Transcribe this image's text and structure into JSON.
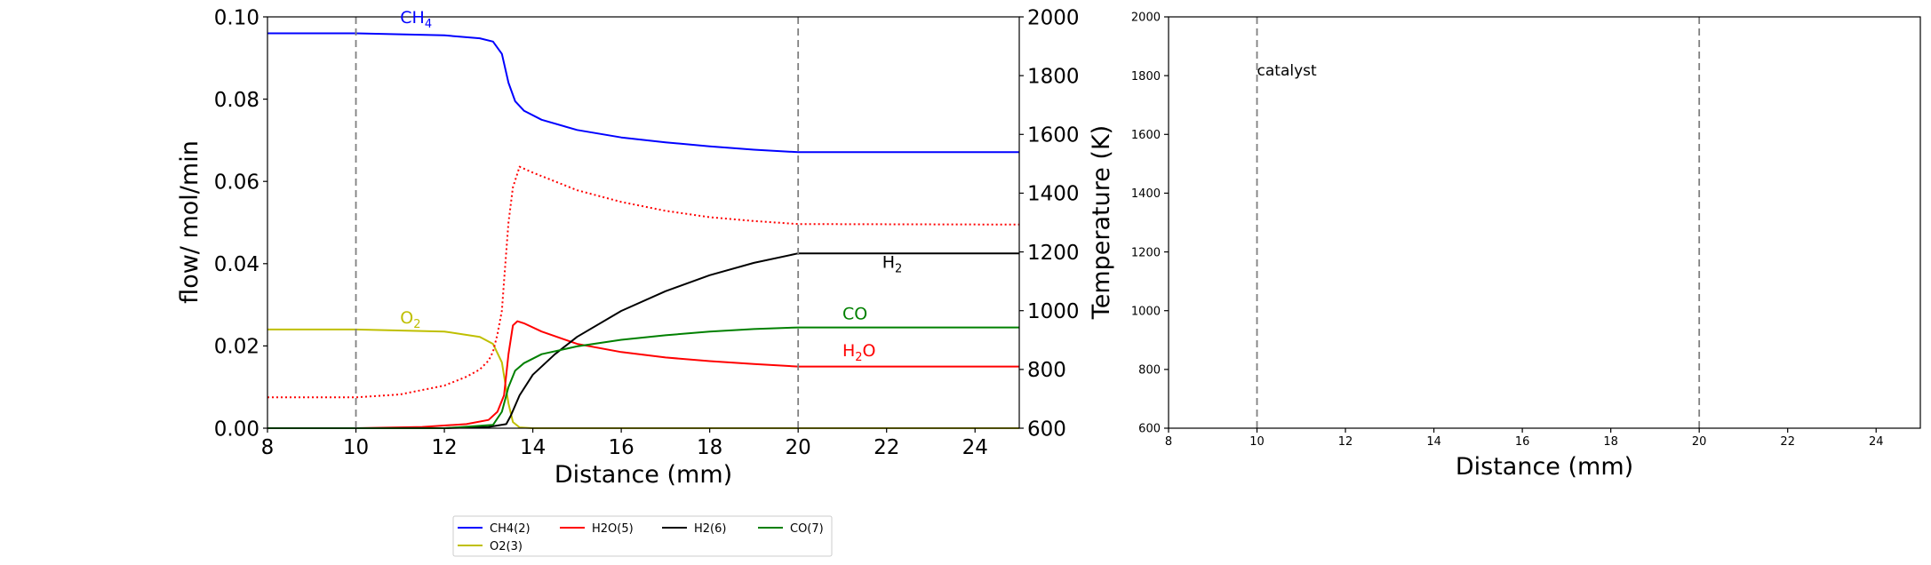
{
  "chart_data": [
    {
      "type": "line",
      "title": "",
      "xlabel": "Distance (mm)",
      "ylabel": "flow/ mol/min",
      "y2label": "Temperature (K)",
      "xlim": [
        8,
        25
      ],
      "ylim": [
        0,
        0.1
      ],
      "y2lim": [
        600,
        2000
      ],
      "xticks": [
        8,
        10,
        12,
        14,
        16,
        18,
        20,
        22,
        24
      ],
      "xtick_labels": [
        "8",
        "10",
        "12",
        "14",
        "16",
        "18",
        "20",
        "22",
        "24"
      ],
      "yticks": [
        0,
        0.02,
        0.04,
        0.06,
        0.08,
        0.1
      ],
      "ytick_labels": [
        "0.00",
        "0.02",
        "0.04",
        "0.06",
        "0.08",
        "0.10"
      ],
      "y2ticks": [
        600,
        800,
        1000,
        1200,
        1400,
        1600,
        1800,
        2000
      ],
      "y2tick_labels": [
        "600",
        "800",
        "1000",
        "1200",
        "1400",
        "1600",
        "1800",
        "2000"
      ],
      "vlines": [
        10,
        20
      ],
      "grid": false,
      "legend_position": "bottom, below plots",
      "legend_entries": [
        {
          "label": "CH4(2)",
          "color": "#0000ff"
        },
        {
          "label": "H2O(5)",
          "color": "#ff0000"
        },
        {
          "label": "H2(6)",
          "color": "#000000"
        },
        {
          "label": "CO(7)",
          "color": "#008000"
        },
        {
          "label": "O2(3)",
          "color": "#bfbf00"
        }
      ],
      "annotations": [
        {
          "base": "CH",
          "sub": "4",
          "color": "#0000ff",
          "x": 11.0,
          "y": 0.0985
        },
        {
          "base": "O",
          "sub": "2",
          "color": "#bfbf00",
          "x": 11.0,
          "y": 0.0255
        },
        {
          "base": "H",
          "sub": "2",
          "color": "#000000",
          "x": 21.9,
          "y": 0.039
        },
        {
          "base": "CO",
          "sub": "",
          "color": "#008000",
          "x": 21.0,
          "y": 0.0265
        },
        {
          "base": "H",
          "sub": "2",
          "tail": "O",
          "color": "#ff0000",
          "x": 21.0,
          "y": 0.0175
        }
      ],
      "series": [
        {
          "name": "CH4(2)",
          "axis": "left",
          "style": "solid",
          "color": "#0000ff",
          "x": [
            8,
            10,
            12,
            12.8,
            13.1,
            13.3,
            13.45,
            13.6,
            13.8,
            14.2,
            15,
            16,
            17,
            18,
            19,
            20,
            25
          ],
          "y": [
            0.096,
            0.096,
            0.0955,
            0.0948,
            0.094,
            0.091,
            0.084,
            0.0795,
            0.0772,
            0.075,
            0.0725,
            0.0707,
            0.0695,
            0.0685,
            0.0677,
            0.0671,
            0.0671
          ]
        },
        {
          "name": "O2(3)",
          "axis": "left",
          "style": "solid",
          "color": "#bfbf00",
          "x": [
            8,
            10,
            12,
            12.8,
            13.1,
            13.3,
            13.45,
            13.55,
            13.7,
            14,
            25
          ],
          "y": [
            0.024,
            0.024,
            0.0235,
            0.0222,
            0.0205,
            0.016,
            0.006,
            0.0015,
            0.0002,
            0,
            0
          ]
        },
        {
          "name": "H2O(5)",
          "axis": "left",
          "style": "solid",
          "color": "#ff0000",
          "x": [
            8,
            10,
            11.5,
            12.5,
            13.0,
            13.2,
            13.35,
            13.45,
            13.55,
            13.65,
            13.8,
            14.2,
            15,
            16,
            17,
            18,
            19,
            20,
            25
          ],
          "y": [
            0,
            0,
            0.0003,
            0.001,
            0.002,
            0.004,
            0.008,
            0.018,
            0.025,
            0.026,
            0.0255,
            0.0235,
            0.0205,
            0.0185,
            0.0172,
            0.0163,
            0.0156,
            0.015,
            0.015
          ]
        },
        {
          "name": "H2(6)",
          "axis": "left",
          "style": "solid",
          "color": "#000000",
          "x": [
            8,
            12,
            13.0,
            13.4,
            13.5,
            13.7,
            14,
            14.5,
            15,
            16,
            17,
            18,
            19,
            20,
            25
          ],
          "y": [
            0,
            0,
            0.0003,
            0.001,
            0.003,
            0.008,
            0.013,
            0.018,
            0.0222,
            0.0285,
            0.0333,
            0.0372,
            0.0402,
            0.0425,
            0.0425
          ]
        },
        {
          "name": "CO(7)",
          "axis": "left",
          "style": "solid",
          "color": "#008000",
          "x": [
            8,
            12,
            13.1,
            13.3,
            13.45,
            13.6,
            13.8,
            14.2,
            15,
            16,
            17,
            18,
            19,
            20,
            25
          ],
          "y": [
            0,
            0,
            0.0008,
            0.004,
            0.01,
            0.014,
            0.0158,
            0.018,
            0.0199,
            0.0215,
            0.0226,
            0.0235,
            0.0241,
            0.0245,
            0.0245
          ]
        },
        {
          "name": "Temperature",
          "axis": "right",
          "style": "dotted",
          "color": "#ff0000",
          "x": [
            8,
            10,
            11,
            12,
            12.5,
            12.8,
            13.0,
            13.1,
            13.2,
            13.3,
            13.35,
            13.45,
            13.55,
            13.7,
            14,
            15,
            16,
            17,
            18,
            19,
            20,
            25
          ],
          "y": [
            705,
            705,
            715,
            745,
            775,
            800,
            830,
            860,
            920,
            1000,
            1100,
            1300,
            1420,
            1490,
            1470,
            1410,
            1370,
            1340,
            1318,
            1305,
            1295,
            1293
          ]
        }
      ]
    },
    {
      "type": "line",
      "title": "",
      "xlabel": "Distance (mm)",
      "ylabel": "",
      "xlim": [
        8,
        25
      ],
      "ylim": [
        600,
        2000
      ],
      "xticks": [
        8,
        10,
        12,
        14,
        16,
        18,
        20,
        22,
        24
      ],
      "xtick_labels": [
        "8",
        "10",
        "12",
        "14",
        "16",
        "18",
        "20",
        "22",
        "24"
      ],
      "yticks": [
        600,
        800,
        1000,
        1200,
        1400,
        1600,
        1800,
        2000
      ],
      "ytick_labels": [
        "600",
        "800",
        "1000",
        "1200",
        "1400",
        "1600",
        "1800",
        "2000"
      ],
      "vlines": [
        10,
        20
      ],
      "grid": false,
      "annotations": [
        {
          "base": "catalyst",
          "sub": "",
          "color": "#000000",
          "x": 10.0,
          "y": 1800
        }
      ],
      "series": []
    }
  ]
}
